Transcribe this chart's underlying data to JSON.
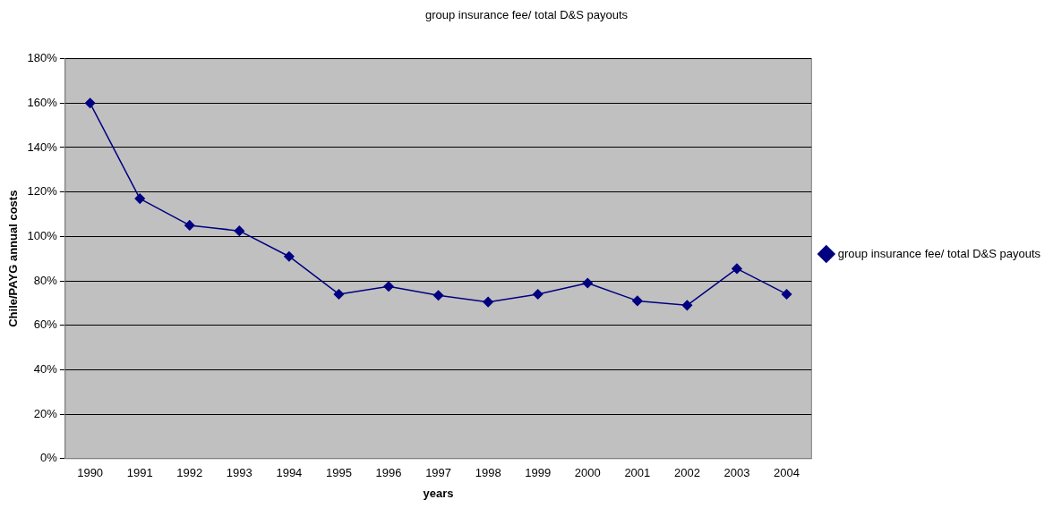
{
  "chart_data": {
    "type": "line",
    "title": "group insurance fee/ total D&S payouts",
    "xlabel": "years",
    "ylabel": "Chile/PAYG annual costs",
    "categories": [
      "1990",
      "1991",
      "1992",
      "1993",
      "1994",
      "1995",
      "1996",
      "1997",
      "1998",
      "1999",
      "2000",
      "2001",
      "2002",
      "2003",
      "2004"
    ],
    "series": [
      {
        "name": "group insurance fee/ total D&S payouts",
        "color": "#000080",
        "values": [
          160,
          117,
          105,
          102.5,
          91,
          74,
          77.5,
          73.5,
          70.5,
          74,
          79,
          71,
          69,
          85.5,
          74
        ]
      }
    ],
    "ylim": [
      0,
      180
    ],
    "yticks": [
      {
        "value": 0,
        "label": "0%"
      },
      {
        "value": 20,
        "label": "20%"
      },
      {
        "value": 40,
        "label": "40%"
      },
      {
        "value": 60,
        "label": "60%"
      },
      {
        "value": 80,
        "label": "80%"
      },
      {
        "value": 100,
        "label": "100%"
      },
      {
        "value": 120,
        "label": "120%"
      },
      {
        "value": 140,
        "label": "140%"
      },
      {
        "value": 160,
        "label": "160%"
      },
      {
        "value": 180,
        "label": "180%"
      }
    ],
    "grid": "y",
    "legend": "right",
    "marker": "diamond",
    "line_style": "solid"
  }
}
